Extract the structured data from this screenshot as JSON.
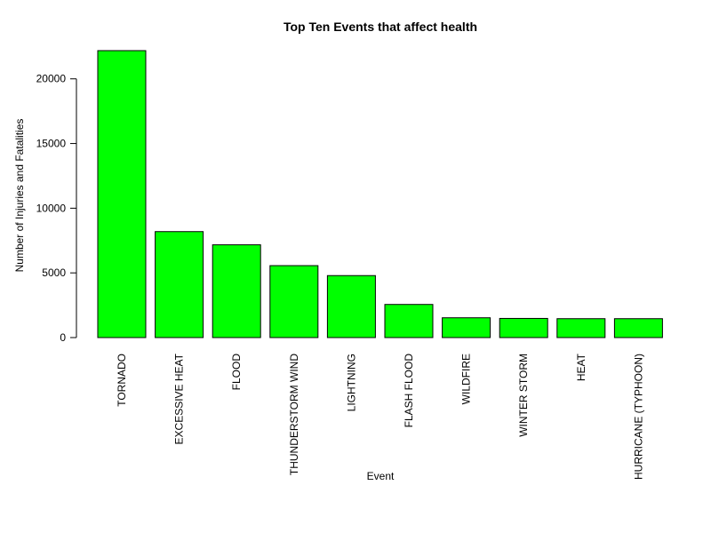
{
  "chart_data": {
    "type": "bar",
    "title": "Top Ten Events that affect health",
    "xlabel": "Event",
    "ylabel": "Number of Injuries and Fatalities",
    "categories": [
      "TORNADO",
      "EXCESSIVE HEAT",
      "FLOOD",
      "THUNDERSTORM WIND",
      "LIGHTNING",
      "FLASH FLOOD",
      "WILDFIRE",
      "WINTER STORM",
      "HEAT",
      "HURRICANE (TYPHOON)"
    ],
    "values": [
      22180,
      8190,
      7170,
      5560,
      4790,
      2560,
      1530,
      1480,
      1460,
      1460
    ],
    "yticks": [
      0,
      5000,
      10000,
      15000,
      20000
    ],
    "ylim": [
      0,
      22180
    ],
    "bar_color": "#00ff00",
    "bar_stroke": "#000000",
    "grid": false,
    "legend": "none"
  }
}
